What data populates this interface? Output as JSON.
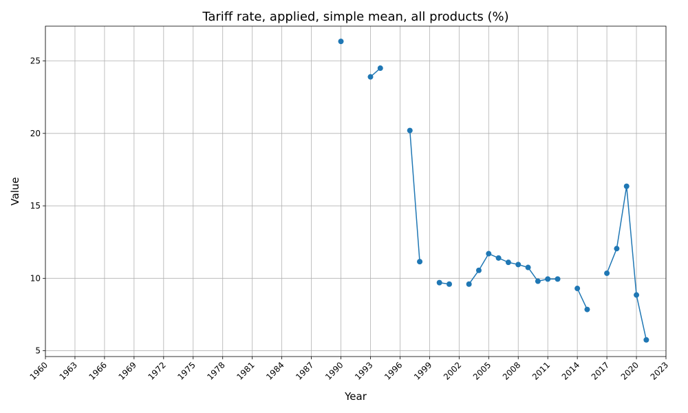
{
  "chart_data": {
    "type": "line",
    "title": "Tariff rate, applied, simple mean, all products (%)",
    "xlabel": "Year",
    "ylabel": "Value",
    "xlim": [
      1960,
      2023
    ],
    "ylim": [
      4.6,
      27.4
    ],
    "xticks": [
      1960,
      1963,
      1966,
      1969,
      1972,
      1975,
      1978,
      1981,
      1984,
      1987,
      1990,
      1993,
      1996,
      1999,
      2002,
      2005,
      2008,
      2011,
      2014,
      2017,
      2020,
      2023
    ],
    "yticks": [
      5,
      10,
      15,
      20,
      25
    ],
    "grid": true,
    "color": "#1f77b4",
    "series": [
      {
        "x": [
          1990,
          1991,
          1992,
          1993,
          1994,
          1995,
          1996,
          1997,
          1998,
          1999,
          2000,
          2001,
          2002,
          2003,
          2004,
          2005,
          2006,
          2007,
          2008,
          2009,
          2010,
          2011,
          2012,
          2013,
          2014,
          2015,
          2016,
          2017,
          2018,
          2019,
          2020,
          2021
        ],
        "y": [
          26.35,
          null,
          null,
          23.9,
          24.5,
          null,
          null,
          20.2,
          11.15,
          null,
          9.7,
          9.6,
          null,
          9.6,
          10.55,
          11.7,
          11.4,
          11.1,
          10.95,
          10.75,
          9.8,
          9.95,
          9.95,
          null,
          9.3,
          7.85,
          null,
          10.35,
          12.05,
          16.35,
          8.85,
          5.75
        ]
      }
    ]
  }
}
